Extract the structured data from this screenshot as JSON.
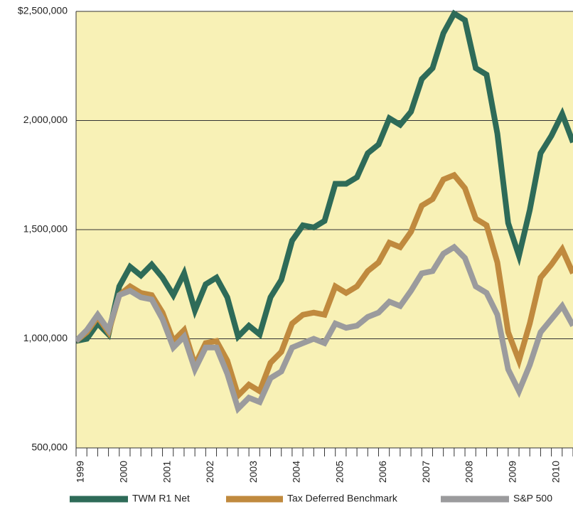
{
  "chart_data": {
    "type": "line",
    "categories": [
      "1999",
      null,
      null,
      null,
      "2000",
      null,
      null,
      null,
      "2001",
      null,
      null,
      null,
      "2002",
      null,
      null,
      null,
      "2003",
      null,
      null,
      null,
      "2004",
      null,
      null,
      null,
      "2005",
      null,
      null,
      null,
      "2006",
      null,
      null,
      null,
      "2007",
      null,
      null,
      null,
      "2008",
      null,
      null,
      null,
      "2009",
      null,
      null,
      null,
      "2010",
      null,
      null
    ],
    "series": [
      {
        "name": "TWM R1 Net",
        "color": "#2e6b58",
        "values": [
          990000,
          1000000,
          1070000,
          1020000,
          1240000,
          1330000,
          1290000,
          1340000,
          1280000,
          1200000,
          1300000,
          1130000,
          1250000,
          1280000,
          1190000,
          1010000,
          1060000,
          1020000,
          1190000,
          1270000,
          1450000,
          1520000,
          1510000,
          1540000,
          1710000,
          1710000,
          1740000,
          1850000,
          1890000,
          2010000,
          1980000,
          2040000,
          2190000,
          2240000,
          2400000,
          2490000,
          2460000,
          2240000,
          2210000,
          1940000,
          1530000,
          1380000,
          1590000,
          1850000,
          1930000,
          2030000,
          1900000
        ]
      },
      {
        "name": "Tax Deferred Benchmark",
        "color": "#c08a3e",
        "values": [
          990000,
          1030000,
          1100000,
          1030000,
          1200000,
          1240000,
          1210000,
          1200000,
          1120000,
          990000,
          1040000,
          880000,
          980000,
          990000,
          900000,
          740000,
          790000,
          760000,
          890000,
          940000,
          1070000,
          1110000,
          1120000,
          1110000,
          1240000,
          1210000,
          1240000,
          1310000,
          1350000,
          1440000,
          1420000,
          1490000,
          1610000,
          1640000,
          1730000,
          1750000,
          1690000,
          1550000,
          1520000,
          1350000,
          1030000,
          900000,
          1070000,
          1280000,
          1340000,
          1410000,
          1300000
        ]
      },
      {
        "name": "S&P 500",
        "color": "#9b9b9d",
        "values": [
          990000,
          1040000,
          1110000,
          1040000,
          1200000,
          1220000,
          1190000,
          1180000,
          1090000,
          960000,
          1010000,
          860000,
          960000,
          960000,
          840000,
          680000,
          730000,
          710000,
          820000,
          850000,
          960000,
          980000,
          1000000,
          980000,
          1070000,
          1050000,
          1060000,
          1100000,
          1120000,
          1170000,
          1150000,
          1220000,
          1300000,
          1310000,
          1390000,
          1420000,
          1370000,
          1240000,
          1210000,
          1110000,
          860000,
          760000,
          880000,
          1030000,
          1090000,
          1150000,
          1060000
        ]
      }
    ],
    "ylim": [
      500000,
      2500000
    ],
    "yticks": [
      {
        "value": 500000,
        "label": "500,000"
      },
      {
        "value": 1000000,
        "label": "1,000,000"
      },
      {
        "value": 1500000,
        "label": "1,500,000"
      },
      {
        "value": 2000000,
        "label": "2,000,000"
      },
      {
        "value": 2500000,
        "label": "$2,500,000"
      }
    ],
    "grid": true,
    "background": "#f8f1b6"
  }
}
